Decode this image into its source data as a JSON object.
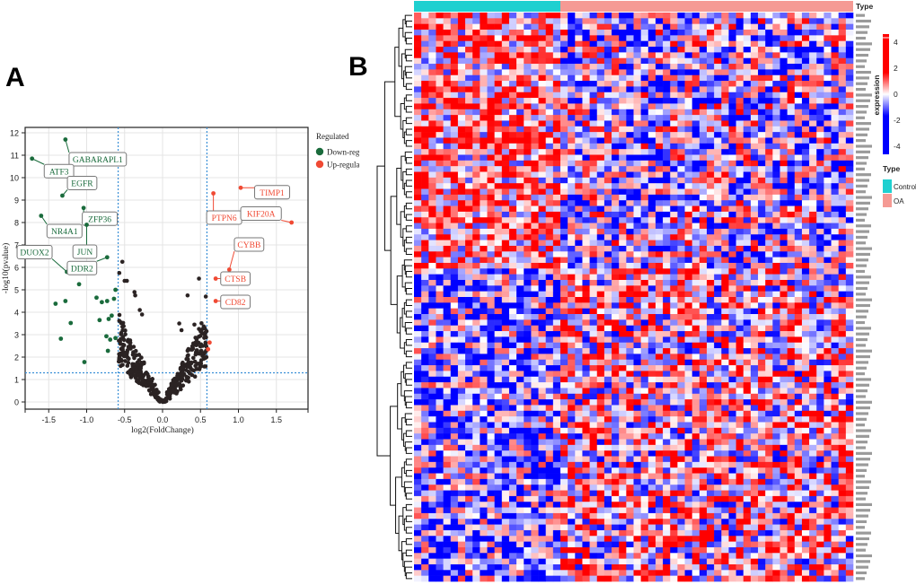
{
  "panels": {
    "a": "A",
    "b": "B"
  },
  "chart_data": [
    {
      "type": "scatter",
      "subtype": "volcano",
      "xlabel": "log2(FoldChange)",
      "ylabel": "-log10(pvalue)",
      "xlim": [
        -1.8,
        1.9
      ],
      "ylim": [
        -0.3,
        12
      ],
      "xticks": [
        "-1.5",
        "-1.0",
        "-0.5",
        "0.0",
        "0.5",
        "1.0",
        "1.5"
      ],
      "xtick_values": [
        -1.5,
        -1.0,
        -0.5,
        0.0,
        0.5,
        1.0,
        1.5
      ],
      "yticks": [
        "0",
        "1",
        "2",
        "3",
        "4",
        "5",
        "6",
        "7",
        "8",
        "9",
        "10",
        "11",
        "12"
      ],
      "grid": true,
      "thresholds": {
        "log2fc": [
          -0.585,
          0.585
        ],
        "neg_log10_p": 1.3
      },
      "legend": {
        "title": "Regulated",
        "position": "right",
        "entries": [
          {
            "label": "Down-regulated",
            "color": "#1a6b3c"
          },
          {
            "label": "Up-regulated",
            "color": "#f04a34"
          }
        ]
      },
      "colors": {
        "down": "#1a6b3c",
        "up": "#f04a34",
        "ns": "#2b2323",
        "threshold": "#3a8fd6"
      },
      "labeled_points": [
        {
          "gene": "GABARAPL1",
          "x": -1.28,
          "y": 11.7,
          "group": "down"
        },
        {
          "gene": "ATF3",
          "x": -1.72,
          "y": 10.85,
          "group": "down"
        },
        {
          "gene": "EGFR",
          "x": -1.32,
          "y": 9.2,
          "group": "down"
        },
        {
          "gene": "ZFP36",
          "x": -1.04,
          "y": 8.65,
          "group": "down"
        },
        {
          "gene": "NR4A1",
          "x": -1.6,
          "y": 8.3,
          "group": "down"
        },
        {
          "gene": "JUN",
          "x": -1.0,
          "y": 7.9,
          "group": "down"
        },
        {
          "gene": "DUOX2",
          "x": -1.26,
          "y": 5.8,
          "group": "down"
        },
        {
          "gene": "DDR2",
          "x": -0.73,
          "y": 6.45,
          "group": "down"
        },
        {
          "gene": "TIMP1",
          "x": 1.03,
          "y": 9.55,
          "group": "up"
        },
        {
          "gene": "PTPN6",
          "x": 0.67,
          "y": 9.3,
          "group": "up"
        },
        {
          "gene": "KIF20A",
          "x": 1.7,
          "y": 8.0,
          "group": "up"
        },
        {
          "gene": "CYBB",
          "x": 0.88,
          "y": 5.9,
          "group": "up"
        },
        {
          "gene": "CTSB",
          "x": 0.7,
          "y": 5.5,
          "group": "up"
        },
        {
          "gene": "CD82",
          "x": 0.7,
          "y": 4.5,
          "group": "up"
        }
      ],
      "down_points": [
        [
          -1.1,
          5.25
        ],
        [
          -0.87,
          4.65
        ],
        [
          -0.8,
          4.45
        ],
        [
          -0.73,
          4.5
        ],
        [
          -0.64,
          4.6
        ],
        [
          -0.62,
          5.0
        ],
        [
          -1.41,
          4.38
        ],
        [
          -1.28,
          4.5
        ],
        [
          -1.21,
          3.52
        ],
        [
          -1.34,
          2.82
        ],
        [
          -0.83,
          3.65
        ],
        [
          -0.71,
          3.7
        ],
        [
          -0.67,
          3.85
        ],
        [
          -0.74,
          2.93
        ],
        [
          -0.69,
          2.78
        ],
        [
          -0.62,
          2.85
        ],
        [
          -0.72,
          2.28
        ],
        [
          -1.03,
          1.78
        ]
      ],
      "up_points": [
        [
          0.62,
          2.65
        ],
        [
          0.6,
          2.35
        ]
      ],
      "ns_point_count": 380
    },
    {
      "type": "heatmap",
      "column_groups": [
        {
          "label": "Control",
          "color": "#1fd0d0",
          "n": 20
        },
        {
          "label": "OA",
          "color": "#f59a94",
          "n": 40
        }
      ],
      "row_count": 100,
      "annotation_title": "Type",
      "colorbar": {
        "label": "expression",
        "min": -4,
        "max": 4,
        "ticks": [
          "4",
          "2",
          "0",
          "-2",
          "-4"
        ],
        "low_color": "#0000ff",
        "mid_color": "#ffffff",
        "high_color": "#ff0000"
      },
      "dendrogram": "rows"
    }
  ]
}
